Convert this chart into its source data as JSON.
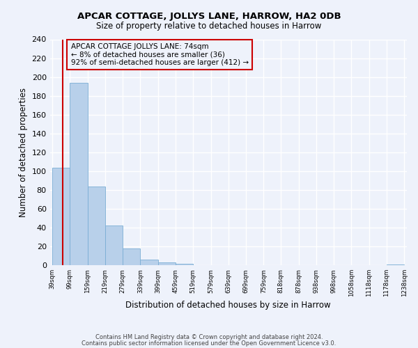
{
  "title": "APCAR COTTAGE, JOLLYS LANE, HARROW, HA2 0DB",
  "subtitle": "Size of property relative to detached houses in Harrow",
  "xlabel": "Distribution of detached houses by size in Harrow",
  "ylabel": "Number of detached properties",
  "bar_edges": [
    39,
    99,
    159,
    219,
    279,
    339,
    399,
    459,
    519,
    579,
    639,
    699,
    759,
    818,
    878,
    938,
    998,
    1058,
    1118,
    1178,
    1238
  ],
  "bar_heights": [
    104,
    194,
    84,
    42,
    18,
    6,
    3,
    2,
    0,
    0,
    0,
    0,
    0,
    0,
    0,
    0,
    0,
    0,
    0,
    1,
    0
  ],
  "bar_color": "#b8d0ea",
  "bar_edge_color": "#7aadd4",
  "property_line_x": 74,
  "property_line_color": "#cc0000",
  "annotation_line1": "APCAR COTTAGE JOLLYS LANE: 74sqm",
  "annotation_line2": "← 8% of detached houses are smaller (36)",
  "annotation_line3": "92% of semi-detached houses are larger (412) →",
  "annotation_box_color": "#cc0000",
  "annotation_text_color": "black",
  "ylim": [
    0,
    240
  ],
  "yticks": [
    0,
    20,
    40,
    60,
    80,
    100,
    120,
    140,
    160,
    180,
    200,
    220,
    240
  ],
  "background_color": "#eef2fb",
  "grid_color": "white",
  "footnote_line1": "Contains HM Land Registry data © Crown copyright and database right 2024.",
  "footnote_line2": "Contains public sector information licensed under the Open Government Licence v3.0."
}
